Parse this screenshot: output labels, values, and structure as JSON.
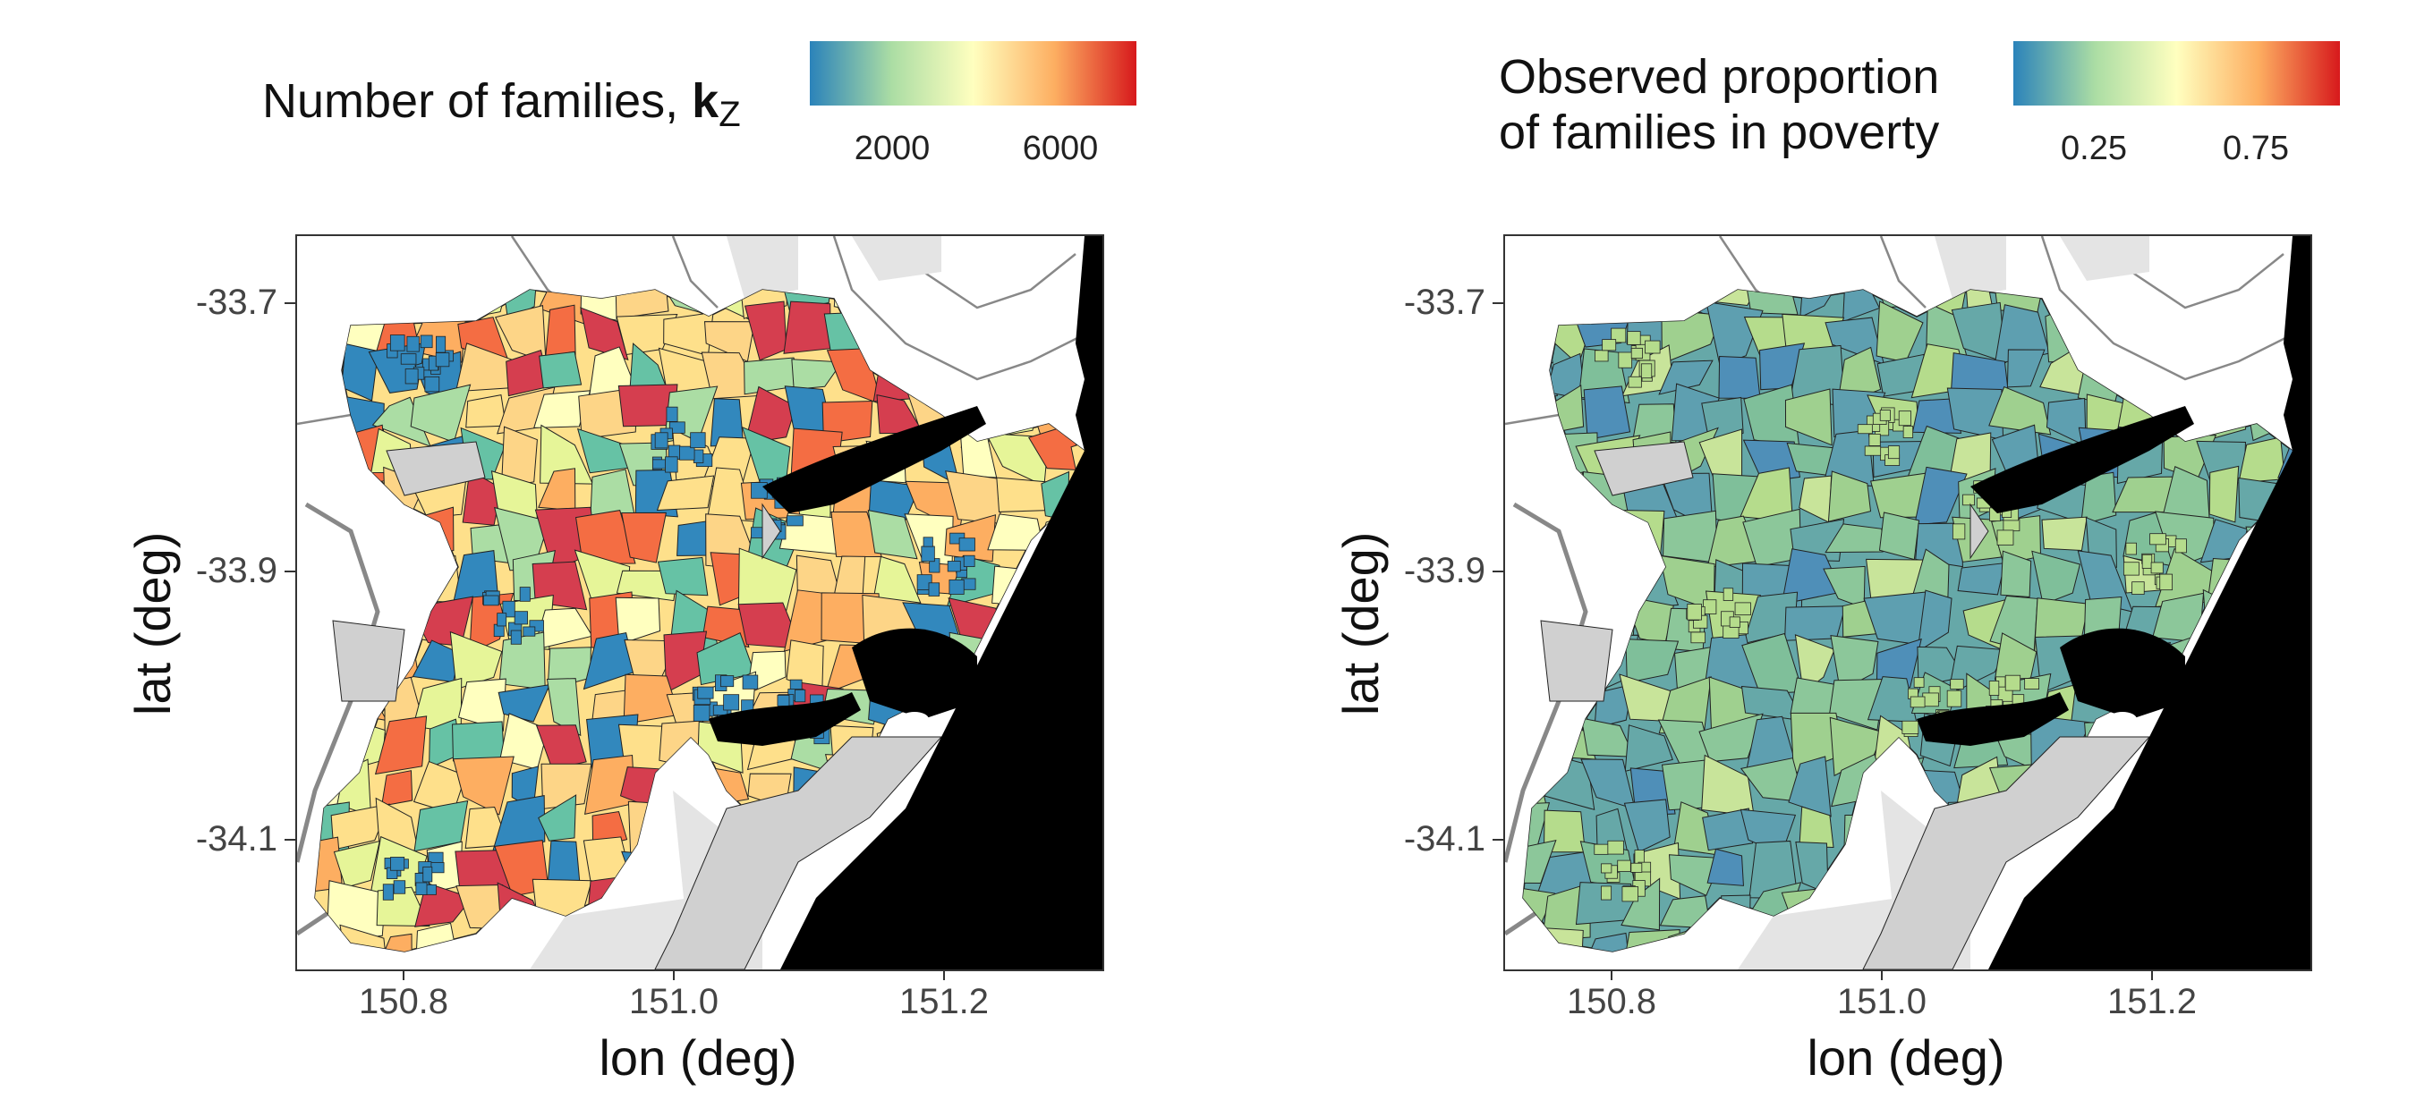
{
  "panels": [
    {
      "legend": {
        "title_text": "Number of families, ",
        "title_bold": "k",
        "title_sub": "Z",
        "tick_labels": [
          "2000",
          "6000"
        ],
        "colors": [
          "#2b83ba",
          "#abdda4",
          "#ffffbf",
          "#fdae61",
          "#d7191c"
        ]
      },
      "xlabel": "lon (deg)",
      "ylabel": "lat (deg)",
      "xticks": [
        "150.8",
        "151.0",
        "151.2"
      ],
      "yticks": [
        "-33.7",
        "-33.9",
        "-34.1"
      ]
    },
    {
      "legend": {
        "title_line1": "Observed proportion",
        "title_line2": "of families in poverty",
        "tick_labels": [
          "0.25",
          "0.75"
        ],
        "colors": [
          "#2b83ba",
          "#abdda4",
          "#ffffbf",
          "#fdae61",
          "#d7191c"
        ]
      },
      "xlabel": "lon (deg)",
      "ylabel": "lat (deg)",
      "xticks": [
        "150.8",
        "151.0",
        "151.2"
      ],
      "yticks": [
        "-33.7",
        "-33.9",
        "-34.1"
      ]
    }
  ],
  "map_colors": {
    "sea": "#000000",
    "land_outside": "#ffffff",
    "parks": "#d0d0d0",
    "roads": "#888888",
    "left_regions": [
      "#fee08b",
      "#fdae61",
      "#f46d43",
      "#ffffbf",
      "#e6f598",
      "#d53e4f",
      "#3288bd",
      "#abdda4",
      "#fdd587",
      "#66c2a5"
    ],
    "right_regions": [
      "#66a8a8",
      "#7fbf9a",
      "#9fd08f",
      "#b5dc8c",
      "#5e9fb0",
      "#8cc79a",
      "#c8e49a",
      "#4f8fb8"
    ]
  }
}
